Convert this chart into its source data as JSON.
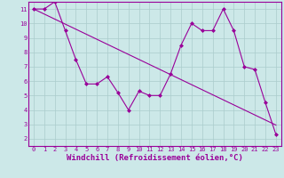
{
  "x": [
    0,
    1,
    2,
    3,
    4,
    5,
    6,
    7,
    8,
    9,
    10,
    11,
    12,
    13,
    14,
    15,
    16,
    17,
    18,
    19,
    20,
    21,
    22,
    23
  ],
  "y_main": [
    11,
    11,
    11.5,
    9.5,
    7.5,
    5.8,
    5.8,
    6.3,
    5.2,
    4.0,
    5.3,
    5.0,
    5.0,
    6.5,
    8.5,
    10.0,
    9.5,
    9.5,
    11.0,
    9.5,
    7.0,
    6.8,
    4.5,
    2.3
  ],
  "y_trend": [
    11,
    10.65,
    10.3,
    9.95,
    9.6,
    9.25,
    8.9,
    8.55,
    8.2,
    7.85,
    7.5,
    7.15,
    6.8,
    6.45,
    6.1,
    5.75,
    5.4,
    5.05,
    4.7,
    4.35,
    4.0,
    3.65,
    3.3,
    2.95
  ],
  "line_color": "#990099",
  "bg_color": "#cce8e8",
  "plot_bg": "#cce8e8",
  "grid_color": "#aacccc",
  "xlabel": "Windchill (Refroidissement éolien,°C)",
  "xlim": [
    -0.5,
    23.5
  ],
  "ylim": [
    1.5,
    11.5
  ],
  "yticks": [
    2,
    3,
    4,
    5,
    6,
    7,
    8,
    9,
    10,
    11
  ],
  "xticks": [
    0,
    1,
    2,
    3,
    4,
    5,
    6,
    7,
    8,
    9,
    10,
    11,
    12,
    13,
    14,
    15,
    16,
    17,
    18,
    19,
    20,
    21,
    22,
    23
  ],
  "tick_fontsize": 5,
  "label_fontsize": 6.5
}
